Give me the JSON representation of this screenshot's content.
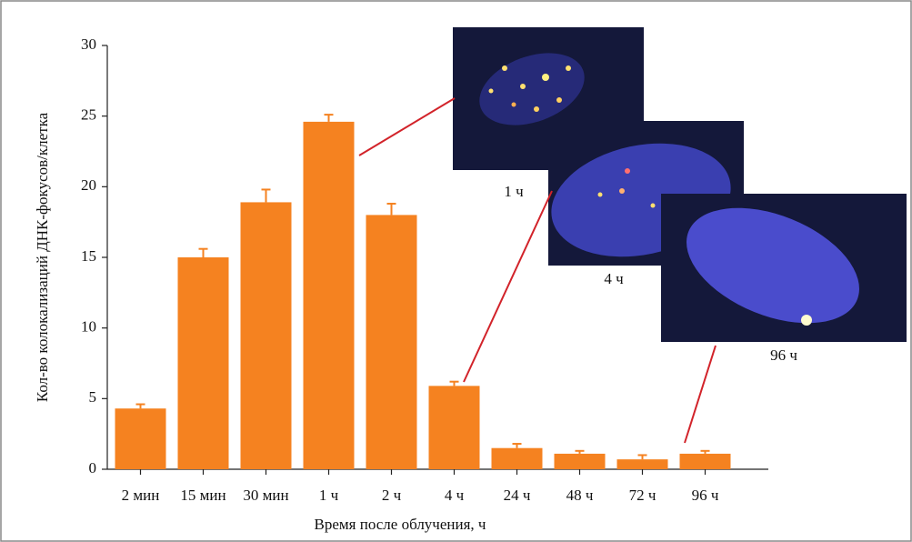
{
  "chart_data": {
    "type": "bar",
    "x_label": "Время после облучения, ч",
    "y_label": "Кол-во колокализаций ДНК-фокусов/клетка",
    "categories": [
      "2 мин",
      "15 мин",
      "30 мин",
      "1 ч",
      "2 ч",
      "4 ч",
      "24 ч",
      "48 ч",
      "72 ч",
      "96 ч"
    ],
    "values": [
      4.3,
      15.0,
      18.9,
      24.6,
      18.0,
      5.9,
      1.5,
      1.1,
      0.7,
      1.1
    ],
    "errors": [
      0.3,
      0.6,
      0.9,
      0.5,
      0.8,
      0.3,
      0.3,
      0.2,
      0.3,
      0.2
    ],
    "color": "#f58220",
    "ylim": [
      0,
      30
    ],
    "yticks": [
      0,
      5,
      10,
      15,
      20,
      25,
      30
    ],
    "grid": false,
    "annotations": [
      "1 ч",
      "4 ч",
      "96 ч"
    ]
  }
}
